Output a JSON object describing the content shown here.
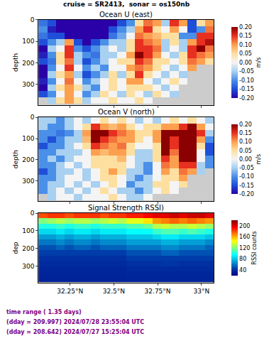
{
  "title": "cruise = SR2413,  sonar = os150nb",
  "footer": [
    "time range ( 1.35 days)",
    "(dday = 209.997) 2024/07/28 23:55:04 UTC",
    "(dday = 208.642) 2024/07/27 15:25:04 UTC"
  ],
  "chart_data": [
    {
      "type": "heatmap",
      "title": "Ocean U (east)",
      "ylabel": "depth",
      "color": "diverging",
      "tick_labels": "y",
      "x": [
        32.095,
        32.145,
        32.195,
        32.245,
        32.295,
        32.345,
        32.395,
        32.445,
        32.495,
        32.545,
        32.595,
        32.645,
        32.695,
        32.745,
        32.795,
        32.845,
        32.895,
        32.945,
        32.995,
        33.045
      ],
      "y": [
        15,
        45,
        75,
        105,
        135,
        165,
        195,
        225,
        255,
        285,
        315,
        345,
        375
      ],
      "xlim": [
        32.07,
        33.07
      ],
      "xticks": [
        32.25,
        32.5,
        32.75,
        33
      ],
      "ylim": [
        395,
        0
      ],
      "yticks": [
        0,
        100,
        200,
        300
      ],
      "zlim": [
        -0.2,
        0.2
      ],
      "zticks": [
        {
          "value": -0.2,
          "label": "-0.20"
        },
        {
          "value": -0.15,
          "label": "-0.15"
        },
        {
          "value": -0.1,
          "label": "-0.10"
        },
        {
          "value": -0.05,
          "label": "-0.05"
        },
        {
          "value": 0,
          "label": "0.00"
        },
        {
          "value": 0.05,
          "label": "0.05"
        },
        {
          "value": 0.1,
          "label": "0.10"
        },
        {
          "value": 0.15,
          "label": "0.15"
        },
        {
          "value": 0.2,
          "label": "0.20"
        }
      ],
      "colorbar_label": "m/s",
      "cells": [
        [
          -0.12,
          -0.15,
          -0.22,
          -0.25,
          -0.25,
          -0.25,
          -0.25,
          -0.22,
          -0.2,
          -0.15,
          -0.1,
          0.05,
          0.12,
          0.1,
          -0.05,
          0.15,
          0.1,
          -0.15,
          0.05,
          0.1
        ],
        [
          -0.1,
          -0.18,
          -0.2,
          -0.25,
          -0.25,
          -0.25,
          -0.25,
          -0.22,
          -0.15,
          -0.1,
          -0.05,
          0.1,
          0.15,
          0.05,
          0,
          0.1,
          0,
          -0.15,
          -0.1,
          0.12
        ],
        [
          -0.12,
          -0.15,
          -0.15,
          -0.2,
          -0.22,
          -0.25,
          -0.22,
          -0.2,
          -0.12,
          -0.08,
          0,
          0.12,
          0.1,
          0.08,
          0.05,
          0.05,
          -0.1,
          -0.1,
          0.15,
          0.15
        ],
        [
          -0.15,
          -0.1,
          -0.05,
          0.1,
          -0.15,
          -0.2,
          -0.15,
          -0.1,
          -0.05,
          -0.05,
          0.05,
          0.15,
          0.12,
          0.1,
          -0.05,
          0.05,
          -0.05,
          0.1,
          0.15,
          0.18
        ],
        [
          -0.2,
          -0.05,
          0,
          0.15,
          -0.1,
          -0.15,
          -0.1,
          -0.05,
          0,
          -0.05,
          0.05,
          0.15,
          0.15,
          0.12,
          -0.05,
          0,
          -0.05,
          0.15,
          0.2,
          0.12
        ],
        [
          -0.18,
          -0.1,
          0.05,
          0.15,
          -0.05,
          -0.1,
          -0.12,
          -0.05,
          -0.05,
          0,
          0.1,
          0.2,
          0.15,
          0.1,
          0,
          -0.05,
          0.05,
          0.15,
          0.12,
          0.1
        ],
        [
          -0.15,
          -0.12,
          0.05,
          0.12,
          -0.05,
          -0.15,
          -0.1,
          -0.05,
          0,
          0.05,
          0.05,
          0.15,
          0.12,
          0.05,
          0.05,
          0,
          0.05,
          0.12,
          0.1,
          0.05
        ],
        [
          -0.2,
          -0.1,
          0,
          0.15,
          0,
          -0.1,
          -0.05,
          -0.1,
          0,
          0,
          0.1,
          0.12,
          0.1,
          0.05,
          0,
          -0.05,
          0,
          0.1,
          null,
          null
        ],
        [
          -0.2,
          -0.05,
          0.05,
          0.1,
          -0.05,
          -0.15,
          -0.1,
          -0.05,
          0.05,
          -0.05,
          0.05,
          0.15,
          0.05,
          0,
          -0.05,
          0,
          -0.05,
          null,
          null,
          null
        ],
        [
          -0.18,
          -0.1,
          0,
          0.12,
          0,
          -0.1,
          -0.05,
          0,
          0.05,
          0,
          0.1,
          0.1,
          0,
          -0.05,
          0,
          0.05,
          0,
          null,
          null,
          null
        ],
        [
          -0.2,
          -0.05,
          0.05,
          0.1,
          0.05,
          -0.05,
          -0.1,
          0,
          0.05,
          0,
          0.05,
          0.05,
          0.05,
          0,
          -0.05,
          0,
          null,
          null,
          null,
          null
        ],
        [
          -0.15,
          -0.1,
          0,
          0.1,
          0,
          -0.1,
          -0.05,
          0.05,
          0,
          -0.05,
          0.05,
          0,
          -0.05,
          0.05,
          0,
          -0.05,
          null,
          null,
          null,
          null
        ],
        [
          null,
          -0.05,
          0.05,
          0.1,
          0.05,
          -0.05,
          0,
          0,
          0.05,
          0,
          0,
          0.05,
          0,
          null,
          null,
          null,
          null,
          null,
          null,
          null
        ]
      ]
    },
    {
      "type": "heatmap",
      "title": "Ocean V (north)",
      "ylabel": "depth",
      "color": "diverging",
      "tick_labels": "y",
      "x": [
        32.095,
        32.145,
        32.195,
        32.245,
        32.295,
        32.345,
        32.395,
        32.445,
        32.495,
        32.545,
        32.595,
        32.645,
        32.695,
        32.745,
        32.795,
        32.845,
        32.895,
        32.945,
        32.995,
        33.045
      ],
      "y": [
        15,
        45,
        75,
        105,
        135,
        165,
        195,
        225,
        255,
        285,
        315,
        345,
        375
      ],
      "xlim": [
        32.07,
        33.07
      ],
      "xticks": [
        32.25,
        32.5,
        32.75,
        33
      ],
      "ylim": [
        395,
        0
      ],
      "yticks": [
        0,
        100,
        200,
        300
      ],
      "zlim": [
        -0.2,
        0.2
      ],
      "zticks": [
        {
          "value": -0.2,
          "label": "-0.20"
        },
        {
          "value": -0.15,
          "label": "-0.15"
        },
        {
          "value": -0.1,
          "label": "-0.10"
        },
        {
          "value": -0.05,
          "label": "-0.05"
        },
        {
          "value": 0,
          "label": "0.00"
        },
        {
          "value": 0.05,
          "label": "0.05"
        },
        {
          "value": 0.1,
          "label": "0.10"
        },
        {
          "value": 0.15,
          "label": "0.15"
        },
        {
          "value": 0.2,
          "label": "0.20"
        }
      ],
      "colorbar_label": "m/s",
      "cells": [
        [
          -0.05,
          -0.05,
          -0.1,
          -0.05,
          0,
          -0.05,
          0,
          0.05,
          0,
          0.05,
          0,
          -0.05,
          0,
          -0.05,
          0,
          0.05,
          0,
          0.05,
          0,
          -0.05
        ],
        [
          -0.05,
          -0.1,
          -0.1,
          -0.05,
          0,
          0.05,
          0.15,
          0.1,
          0.08,
          0.1,
          0.05,
          0,
          0.05,
          0.05,
          0.1,
          0.1,
          0.15,
          0.2,
          0.1,
          0
        ],
        [
          -0.1,
          -0.1,
          -0.12,
          -0.1,
          -0.05,
          0.1,
          0.2,
          0.2,
          0.15,
          0.12,
          0.1,
          0.05,
          0.05,
          0.1,
          0.25,
          0.2,
          0.25,
          0.25,
          0.15,
          -0.05
        ],
        [
          -0.1,
          -0.15,
          -0.1,
          -0.05,
          -0.05,
          0.08,
          0.2,
          0.15,
          0.12,
          0.1,
          0.1,
          0.05,
          0,
          0.1,
          0.25,
          0.15,
          0.25,
          0.3,
          0.1,
          -0.1
        ],
        [
          -0.15,
          -0.1,
          -0.1,
          -0.05,
          0,
          0.05,
          0.15,
          0.12,
          0.1,
          0.12,
          0.05,
          0,
          0,
          0.05,
          0.2,
          0.15,
          0.2,
          0.25,
          0.05,
          -0.15
        ],
        [
          -0.1,
          -0.1,
          -0.05,
          -0.05,
          -0.05,
          0,
          0.1,
          0.08,
          0.1,
          0.1,
          0.05,
          -0.05,
          -0.05,
          0.05,
          0.2,
          0.12,
          0.2,
          0.25,
          0,
          -0.15
        ],
        [
          -0.1,
          -0.05,
          -0.1,
          -0.05,
          0,
          0,
          0.05,
          0.05,
          0.05,
          0.08,
          0,
          -0.05,
          -0.05,
          0.05,
          0.15,
          0.1,
          0.2,
          0.2,
          0,
          -0.1
        ],
        [
          -0.1,
          -0.1,
          -0.05,
          0,
          -0.05,
          0,
          0.05,
          0.05,
          0.05,
          0.05,
          0,
          -0.05,
          -0.1,
          0,
          0.12,
          0.1,
          0.15,
          0.15,
          -0.05,
          -0.1
        ],
        [
          -0.15,
          -0.1,
          -0.05,
          -0.05,
          0,
          -0.05,
          0,
          0.05,
          0.1,
          0.05,
          -0.05,
          -0.05,
          -0.1,
          0,
          0.1,
          0.05,
          0.12,
          0.1,
          -0.05,
          null
        ],
        [
          -0.1,
          -0.1,
          -0.05,
          0,
          0,
          -0.05,
          0,
          0.05,
          0.05,
          0,
          -0.05,
          -0.1,
          -0.05,
          0,
          0.05,
          0.05,
          0.1,
          null,
          null,
          null
        ],
        [
          -0.1,
          -0.05,
          -0.05,
          0,
          -0.05,
          0,
          -0.05,
          0,
          0.05,
          0,
          -0.1,
          -0.05,
          -0.05,
          0.05,
          0.05,
          0,
          0.05,
          null,
          null,
          null
        ],
        [
          -0.1,
          -0.05,
          0,
          -0.05,
          0,
          -0.05,
          0,
          0.05,
          0,
          -0.05,
          -0.05,
          -0.1,
          -0.05,
          0,
          0.05,
          0,
          null,
          null,
          null,
          null
        ],
        [
          null,
          -0.05,
          0,
          0,
          -0.05,
          0,
          0,
          0,
          0.05,
          0,
          -0.05,
          -0.05,
          0,
          null,
          null,
          null,
          null,
          null,
          null,
          null
        ]
      ]
    },
    {
      "type": "heatmap",
      "title": "Signal Strength RSSI)",
      "ylabel": "dep",
      "color": "jet",
      "x": [
        32.095,
        32.145,
        32.195,
        32.245,
        32.295,
        32.345,
        32.395,
        32.445,
        32.495,
        32.545,
        32.595,
        32.645,
        32.695,
        32.745,
        32.795,
        32.845,
        32.895,
        32.945,
        32.995,
        33.045
      ],
      "y": [
        15,
        45,
        75,
        105,
        135,
        165,
        195,
        225,
        255,
        285,
        315,
        345,
        375
      ],
      "xlim": [
        32.07,
        33.07
      ],
      "xticks": [
        {
          "value": 32.25,
          "label": "32.25°N"
        },
        {
          "value": 32.5,
          "label": "32.5°N"
        },
        {
          "value": 32.75,
          "label": "32.75°N"
        },
        {
          "value": 33,
          "label": "33°N"
        }
      ],
      "ylim": [
        395,
        0
      ],
      "yticks": [
        0,
        100,
        200,
        300
      ],
      "zlim": [
        20,
        220
      ],
      "zticks": [
        40,
        80,
        120,
        160,
        200
      ],
      "colorbar_label": "RSSI counts",
      "cells": [
        [
          180,
          185,
          185,
          180,
          185,
          185,
          185,
          180,
          185,
          185,
          190,
          190,
          195,
          200,
          200,
          205,
          200,
          205,
          205,
          200
        ],
        [
          120,
          125,
          130,
          125,
          130,
          130,
          125,
          130,
          135,
          130,
          140,
          140,
          150,
          165,
          170,
          175,
          170,
          175,
          170,
          165
        ],
        [
          100,
          100,
          105,
          100,
          105,
          105,
          100,
          105,
          105,
          105,
          110,
          110,
          115,
          130,
          135,
          130,
          130,
          135,
          130,
          125
        ],
        [
          85,
          85,
          90,
          85,
          90,
          90,
          85,
          90,
          90,
          90,
          95,
          95,
          95,
          105,
          110,
          110,
          105,
          110,
          105,
          100
        ],
        [
          70,
          70,
          75,
          70,
          75,
          75,
          70,
          75,
          75,
          75,
          80,
          80,
          80,
          85,
          90,
          90,
          85,
          85,
          85,
          80
        ],
        [
          60,
          60,
          65,
          60,
          65,
          65,
          60,
          65,
          65,
          65,
          70,
          70,
          70,
          70,
          75,
          75,
          70,
          70,
          70,
          65
        ],
        [
          50,
          50,
          55,
          50,
          55,
          55,
          50,
          55,
          55,
          55,
          60,
          60,
          60,
          60,
          65,
          65,
          60,
          60,
          60,
          55
        ],
        [
          45,
          45,
          45,
          45,
          45,
          45,
          45,
          45,
          45,
          45,
          50,
          50,
          50,
          50,
          55,
          55,
          50,
          50,
          50,
          50
        ],
        [
          40,
          40,
          40,
          40,
          40,
          40,
          40,
          40,
          40,
          40,
          45,
          45,
          45,
          45,
          45,
          45,
          45,
          45,
          45,
          45
        ],
        [
          38,
          38,
          38,
          38,
          38,
          38,
          38,
          38,
          38,
          38,
          40,
          40,
          40,
          40,
          42,
          42,
          40,
          40,
          40,
          40
        ],
        [
          36,
          36,
          36,
          36,
          36,
          36,
          36,
          36,
          36,
          36,
          38,
          38,
          38,
          38,
          38,
          38,
          38,
          38,
          38,
          38
        ],
        [
          35,
          35,
          35,
          35,
          35,
          35,
          35,
          35,
          35,
          35,
          36,
          36,
          36,
          36,
          36,
          36,
          36,
          36,
          36,
          36
        ],
        [
          34,
          34,
          34,
          34,
          34,
          34,
          34,
          34,
          34,
          34,
          35,
          35,
          35,
          35,
          35,
          35,
          35,
          35,
          35,
          35
        ]
      ]
    }
  ]
}
